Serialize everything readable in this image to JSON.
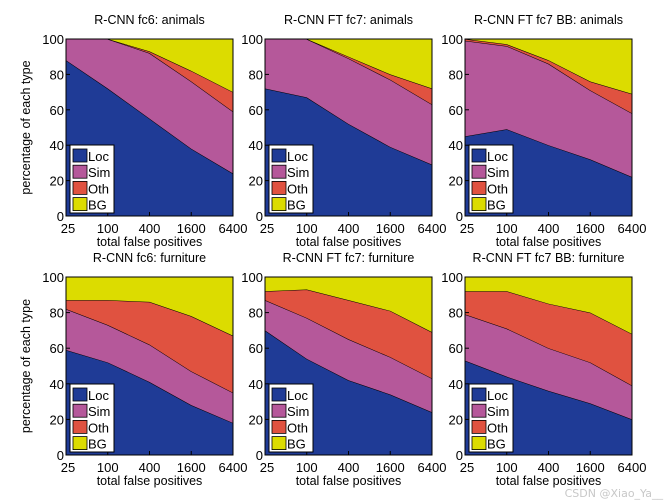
{
  "colors": {
    "Loc": "#1f3b96",
    "Sim": "#b5589a",
    "Oth": "#e05240",
    "BG": "#dcdc00"
  },
  "watermark": "CSDN @Xiao_Ya__",
  "chart_data": [
    {
      "type": "area",
      "stacked": true,
      "title": "R-CNN fc6: animals",
      "xlabel": "total false positives",
      "ylabel": "percentage of each type",
      "ylim": [
        0,
        100
      ],
      "x": [
        "25",
        "100",
        "400",
        "1600",
        "6400"
      ],
      "yticks": [
        "0",
        "20",
        "40",
        "60",
        "80",
        "100"
      ],
      "legend": "bottom-left",
      "series": [
        {
          "name": "Loc",
          "values": [
            88,
            72,
            55,
            38,
            24
          ]
        },
        {
          "name": "Sim",
          "values": [
            12,
            28,
            37,
            38,
            35
          ]
        },
        {
          "name": "Oth",
          "values": [
            0,
            0,
            1,
            6,
            11
          ]
        },
        {
          "name": "BG",
          "values": [
            0,
            0,
            7,
            18,
            30
          ]
        }
      ]
    },
    {
      "type": "area",
      "stacked": true,
      "title": "R-CNN FT fc7: animals",
      "xlabel": "total false positives",
      "ylabel": "",
      "ylim": [
        0,
        100
      ],
      "x": [
        "25",
        "100",
        "400",
        "1600",
        "6400"
      ],
      "yticks": [
        "0",
        "20",
        "40",
        "60",
        "80",
        "100"
      ],
      "legend": "bottom-left",
      "series": [
        {
          "name": "Loc",
          "values": [
            72,
            67,
            52,
            39,
            29
          ]
        },
        {
          "name": "Sim",
          "values": [
            28,
            33,
            37,
            38,
            34
          ]
        },
        {
          "name": "Oth",
          "values": [
            0,
            0,
            1,
            3,
            9
          ]
        },
        {
          "name": "BG",
          "values": [
            0,
            0,
            10,
            20,
            28
          ]
        }
      ]
    },
    {
      "type": "area",
      "stacked": true,
      "title": "R-CNN FT fc7 BB: animals",
      "xlabel": "total false positives",
      "ylabel": "",
      "ylim": [
        0,
        100
      ],
      "x": [
        "25",
        "100",
        "400",
        "1600",
        "6400"
      ],
      "yticks": [
        "0",
        "20",
        "40",
        "60",
        "80",
        "100"
      ],
      "legend": "bottom-left",
      "series": [
        {
          "name": "Loc",
          "values": [
            45,
            49,
            40,
            32,
            22
          ]
        },
        {
          "name": "Sim",
          "values": [
            54,
            47,
            46,
            39,
            36
          ]
        },
        {
          "name": "Oth",
          "values": [
            1,
            1,
            2,
            5,
            11
          ]
        },
        {
          "name": "BG",
          "values": [
            0,
            3,
            12,
            24,
            31
          ]
        }
      ]
    },
    {
      "type": "area",
      "stacked": true,
      "title": "R-CNN fc6: furniture",
      "xlabel": "total false positives",
      "ylabel": "percentage of each type",
      "ylim": [
        0,
        100
      ],
      "x": [
        "25",
        "100",
        "400",
        "1600",
        "6400"
      ],
      "yticks": [
        "0",
        "20",
        "40",
        "60",
        "80",
        "100"
      ],
      "legend": "bottom-left",
      "series": [
        {
          "name": "Loc",
          "values": [
            59,
            52,
            41,
            28,
            18
          ]
        },
        {
          "name": "Sim",
          "values": [
            23,
            21,
            21,
            19,
            17
          ]
        },
        {
          "name": "Oth",
          "values": [
            5,
            14,
            24,
            31,
            32
          ]
        },
        {
          "name": "BG",
          "values": [
            13,
            13,
            14,
            22,
            33
          ]
        }
      ]
    },
    {
      "type": "area",
      "stacked": true,
      "title": "R-CNN FT fc7: furniture",
      "xlabel": "total false positives",
      "ylabel": "",
      "ylim": [
        0,
        100
      ],
      "x": [
        "25",
        "100",
        "400",
        "1600",
        "6400"
      ],
      "yticks": [
        "0",
        "20",
        "40",
        "60",
        "80",
        "100"
      ],
      "legend": "bottom-left",
      "series": [
        {
          "name": "Loc",
          "values": [
            70,
            54,
            42,
            34,
            24
          ]
        },
        {
          "name": "Sim",
          "values": [
            17,
            23,
            23,
            21,
            19
          ]
        },
        {
          "name": "Oth",
          "values": [
            5,
            16,
            22,
            26,
            26
          ]
        },
        {
          "name": "BG",
          "values": [
            8,
            7,
            13,
            19,
            31
          ]
        }
      ]
    },
    {
      "type": "area",
      "stacked": true,
      "title": "R-CNN FT fc7 BB: furniture",
      "xlabel": "total false positives",
      "ylabel": "",
      "ylim": [
        0,
        100
      ],
      "x": [
        "25",
        "100",
        "400",
        "1600",
        "6400"
      ],
      "yticks": [
        "0",
        "20",
        "40",
        "60",
        "80",
        "100"
      ],
      "legend": "bottom-left",
      "series": [
        {
          "name": "Loc",
          "values": [
            53,
            44,
            36,
            29,
            20
          ]
        },
        {
          "name": "Sim",
          "values": [
            26,
            27,
            24,
            23,
            19
          ]
        },
        {
          "name": "Oth",
          "values": [
            13,
            21,
            25,
            28,
            29
          ]
        },
        {
          "name": "BG",
          "values": [
            8,
            8,
            15,
            20,
            32
          ]
        }
      ]
    }
  ]
}
